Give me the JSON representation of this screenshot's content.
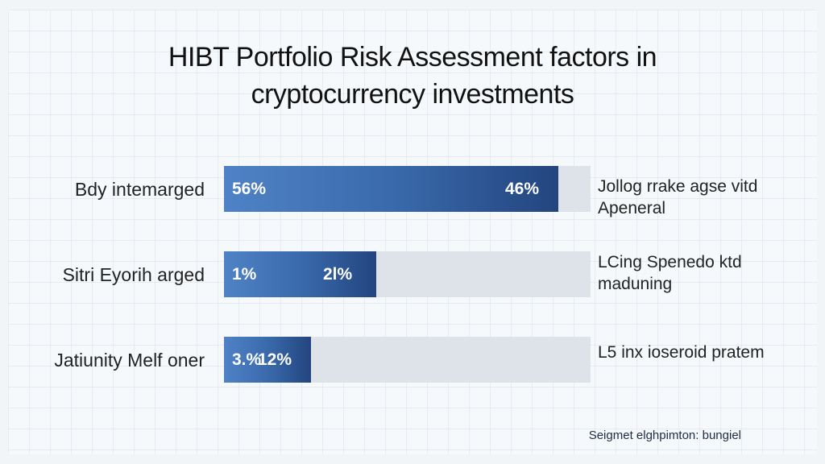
{
  "chart_data": {
    "type": "bar",
    "orientation": "horizontal",
    "title": "HIBT Portfolio Risk Assessment factors in cryptocurrency investments",
    "footer": "Seigmet elghpimton: bungiel",
    "categories": [
      "Bdy intemarged",
      "Sitri Eyorih arged",
      "Jatiunity Melf oner"
    ],
    "value_labels_left": [
      "56%",
      "1%",
      "3.%"
    ],
    "value_labels_right": [
      "46%",
      "2l%",
      "12%"
    ],
    "values": [
      46,
      21,
      12
    ],
    "xlim": [
      0,
      50
    ],
    "annotations": [
      "Jollog rrake agse vitd Apeneral",
      "LCing Spenedo ktd maduning",
      "L5 inx ioseroid pratem"
    ],
    "colors": {
      "bar": "#3a6aac",
      "track": "#dde3e9"
    },
    "grid": false,
    "legend": "none"
  }
}
